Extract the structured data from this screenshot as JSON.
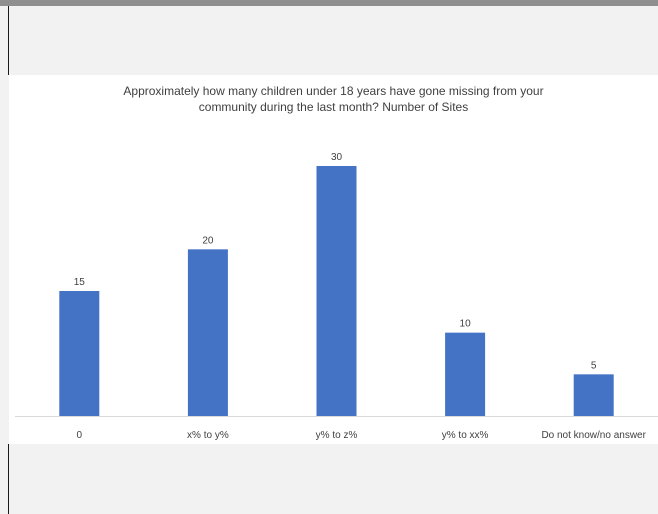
{
  "chart_data": {
    "type": "bar",
    "title": "Approximately how many children under 18 years have gone missing from your\ncommunity during the last month? Number of Sites",
    "categories": [
      "0",
      "x% to y%",
      "y% to z%",
      "y% to xx%",
      "Do not know/no answer"
    ],
    "values": [
      15,
      20,
      30,
      10,
      5
    ],
    "ylim": [
      0,
      30
    ],
    "data_labels": true,
    "grid": false,
    "legend": "none",
    "bar_color": "#4472c4",
    "xlabel": "",
    "ylabel": ""
  }
}
